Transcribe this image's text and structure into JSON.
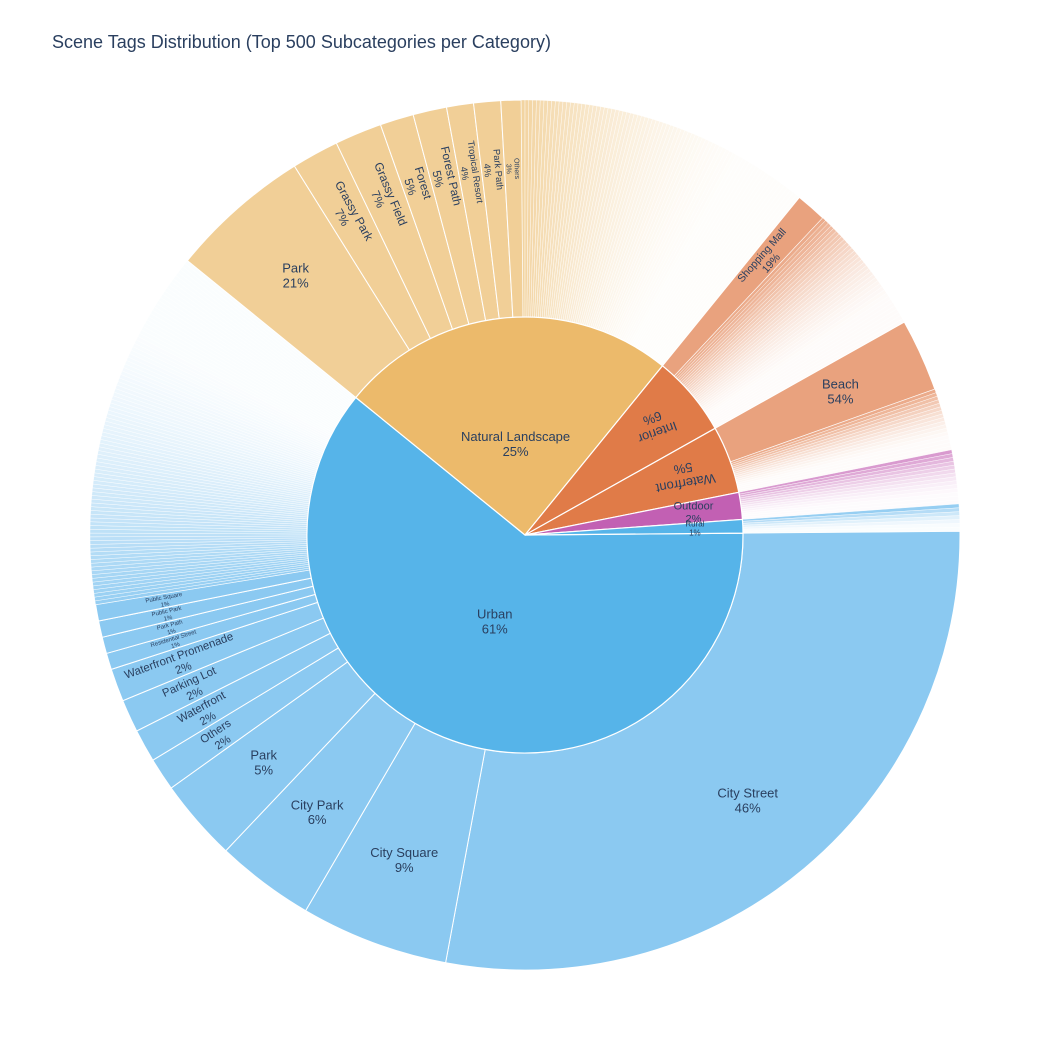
{
  "chart_data": {
    "type": "sunburst",
    "title": "Scene Tags Distribution (Top 500 Subcategories per Category)",
    "categories": [
      {
        "name": "Urban",
        "percent": 61,
        "color": "#56b4e9",
        "child_color": "#8bc9f1",
        "children": [
          {
            "name": "City Street",
            "percent": 46
          },
          {
            "name": "City Square",
            "percent": 9
          },
          {
            "name": "City Park",
            "percent": 6
          },
          {
            "name": "Park",
            "percent": 5
          },
          {
            "name": "Others",
            "percent": 2
          },
          {
            "name": "Waterfront",
            "percent": 2
          },
          {
            "name": "Parking Lot",
            "percent": 2
          },
          {
            "name": "Waterfront Promenade",
            "percent": 2
          },
          {
            "name": "Residential Street",
            "percent": 1
          },
          {
            "name": "Park Path",
            "percent": 1
          },
          {
            "name": "Public Park",
            "percent": 1
          },
          {
            "name": "Public Square",
            "percent": 1
          }
        ]
      },
      {
        "name": "Natural Landscape",
        "percent": 25,
        "color": "#ecba6b",
        "child_color": "#f1cf97",
        "children": [
          {
            "name": "Park",
            "percent": 21
          },
          {
            "name": "Grassy Park",
            "percent": 7
          },
          {
            "name": "Grassy Field",
            "percent": 7
          },
          {
            "name": "Forest",
            "percent": 5
          },
          {
            "name": "Forest Path",
            "percent": 5
          },
          {
            "name": "Tropical Resort",
            "percent": 4
          },
          {
            "name": "Park Path",
            "percent": 4
          },
          {
            "name": "Others",
            "percent": 3
          }
        ]
      },
      {
        "name": "Interior",
        "percent": 6,
        "color": "#e07b48",
        "child_color": "#e9a27e",
        "children": [
          {
            "name": "Shopping Mall",
            "percent": 19
          }
        ]
      },
      {
        "name": "Waterfront",
        "percent": 5,
        "color": "#e07b48",
        "child_color": "#e9a27e",
        "children": [
          {
            "name": "Beach",
            "percent": 54
          }
        ]
      },
      {
        "name": "Outdoor",
        "percent": 2,
        "color": "#c260b3",
        "child_color": "#d58fca",
        "children": []
      },
      {
        "name": "Rural",
        "percent": 1,
        "color": "#56b4e9",
        "child_color": "#8bc9f1",
        "children": []
      }
    ]
  }
}
